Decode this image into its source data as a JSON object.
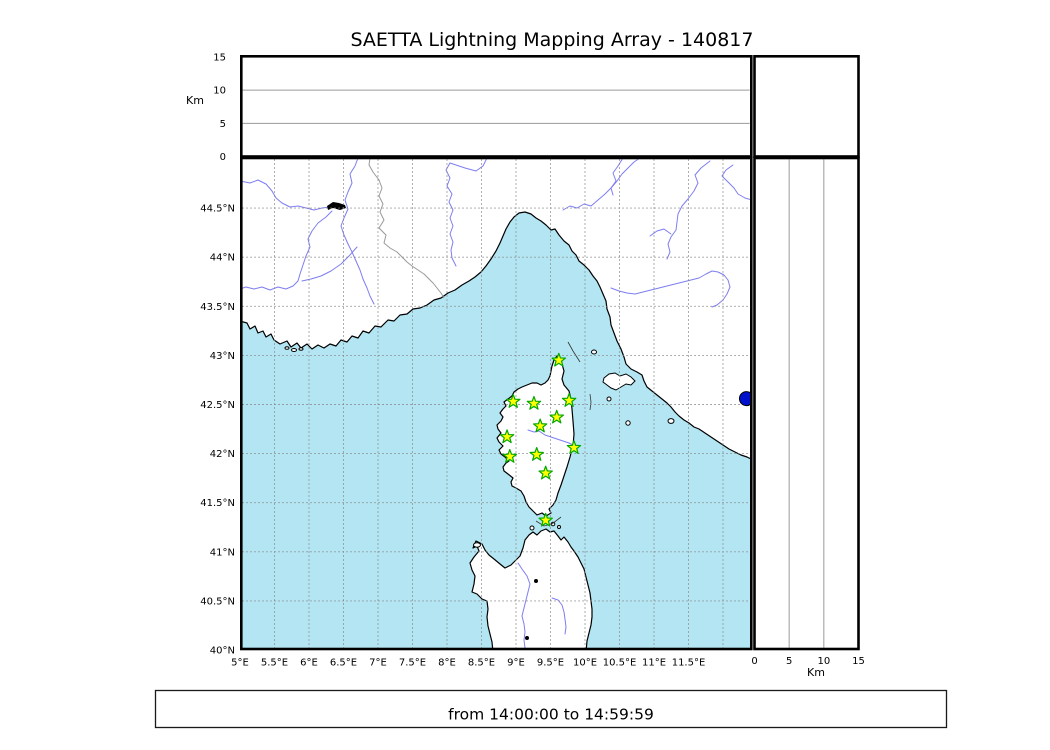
{
  "title": "SAETTA Lightning Mapping Array - 140817",
  "footer": {
    "time_range_label": "from 14:00:00 to 14:59:59"
  },
  "top_panel": {
    "axis_unit": "Km",
    "tick_labels": [
      "0",
      "5",
      "10",
      "15"
    ],
    "tick_values": [
      0,
      5,
      10,
      15
    ],
    "gridline_values": [
      5,
      10
    ],
    "range_km": [
      0,
      15
    ]
  },
  "right_panel": {
    "axis_unit": "Km",
    "tick_labels": [
      "0",
      "5",
      "10",
      "15"
    ],
    "tick_values": [
      0,
      5,
      10,
      15
    ],
    "gridline_values": [
      5,
      10
    ],
    "range_km": [
      0,
      15
    ]
  },
  "map_panel": {
    "lon_ticks": {
      "values": [
        5,
        5.5,
        6,
        6.5,
        7,
        7.5,
        8,
        8.5,
        9,
        9.5,
        10,
        10.5,
        11,
        11.5
      ],
      "labels": [
        "5°E",
        "5.5°E",
        "6°E",
        "6.5°E",
        "7°E",
        "7.5°E",
        "8°E",
        "8.5°E",
        "9°E",
        "9.5°E",
        "10°E",
        "10.5°E",
        "11°E",
        "11.5°E"
      ]
    },
    "lat_ticks": {
      "values": [
        40,
        40.5,
        41,
        41.5,
        42,
        42.5,
        43,
        43.5,
        44,
        44.5
      ],
      "labels": [
        "40°N",
        "40.5°N",
        "41°N",
        "41.5°N",
        "42°N",
        "42.5°N",
        "43°N",
        "43.5°N",
        "44°N",
        "44.5°N"
      ]
    },
    "lon_gridlines": [
      5.5,
      6,
      6.5,
      7,
      7.5,
      8,
      8.5,
      9,
      9.5,
      10,
      10.5,
      11,
      11.5,
      12
    ],
    "lat_gridlines": [
      40.5,
      41,
      41.5,
      42,
      42.5,
      43,
      43.5,
      44,
      44.5
    ]
  },
  "chart_data": {
    "type": "scatter",
    "title": "SAETTA Lightning Mapping Array - 140817",
    "time_range": "from 14:00:00 to 14:59:59",
    "map_extent": {
      "lon": [
        5.0,
        12.43
      ],
      "lat": [
        40.0,
        45.01
      ]
    },
    "altitude_panels_range_km": [
      0,
      15
    ],
    "stations": [
      {
        "lon": 9.62,
        "lat": 42.95
      },
      {
        "lon": 8.96,
        "lat": 42.53
      },
      {
        "lon": 9.26,
        "lat": 42.51
      },
      {
        "lon": 9.77,
        "lat": 42.54
      },
      {
        "lon": 9.59,
        "lat": 42.37
      },
      {
        "lon": 9.35,
        "lat": 42.28
      },
      {
        "lon": 8.87,
        "lat": 42.17
      },
      {
        "lon": 9.84,
        "lat": 42.06
      },
      {
        "lon": 8.91,
        "lat": 41.97
      },
      {
        "lon": 9.3,
        "lat": 41.99
      },
      {
        "lon": 9.43,
        "lat": 41.8
      },
      {
        "lon": 9.43,
        "lat": 41.32
      }
    ],
    "station_marker": {
      "shape": "star",
      "fill": "#ffff00",
      "edge": "#00a800"
    },
    "extra_marker": {
      "shape": "circle",
      "fill": "#0011cc",
      "lon": 12.34,
      "lat": 42.56
    }
  },
  "colors": {
    "background": "#ffffff",
    "sea": "#b3e6f2",
    "land": "#ffffff",
    "coast": "#000000",
    "river": "#7d7df2",
    "country_border": "#999999",
    "map_grid": "#888888",
    "panel_grid": "#9a9a9a",
    "star_fill": "#ffff00",
    "star_edge": "#00a800",
    "blue_dot": "#0011cc"
  }
}
